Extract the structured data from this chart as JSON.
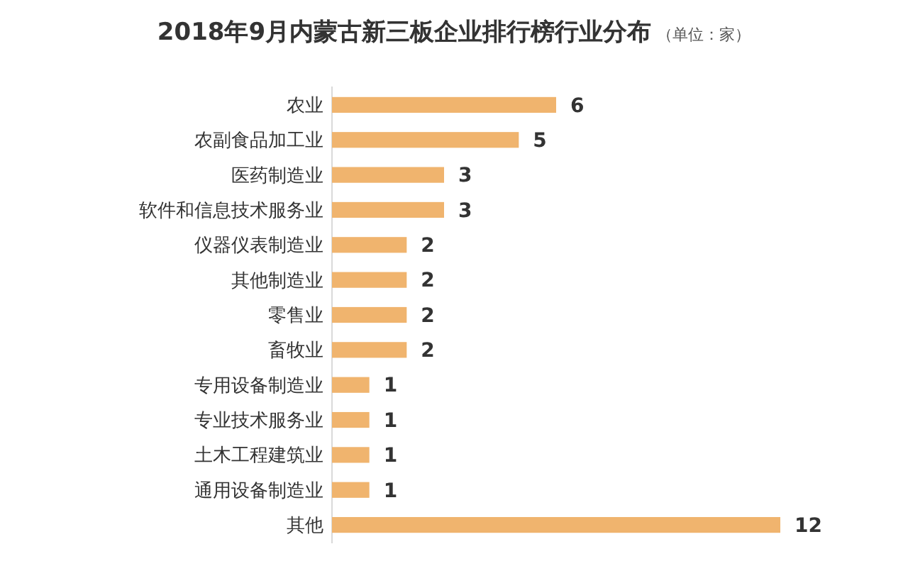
{
  "chart_data": {
    "type": "bar",
    "orientation": "horizontal",
    "title": "2018年9月内蒙古新三板企业排行榜行业分布",
    "subtitle": "（单位：家）",
    "categories": [
      "农业",
      "农副食品加工业",
      "医药制造业",
      "软件和信息技术服务业",
      "仪器仪表制造业",
      "其他制造业",
      "零售业",
      "畜牧业",
      "专用设备制造业",
      "专业技术服务业",
      "土木工程建筑业",
      "通用设备制造业",
      "其他"
    ],
    "values": [
      6,
      5,
      3,
      3,
      2,
      2,
      2,
      2,
      1,
      1,
      1,
      1,
      12
    ],
    "color": "#f0b46e",
    "data_labels": true
  }
}
